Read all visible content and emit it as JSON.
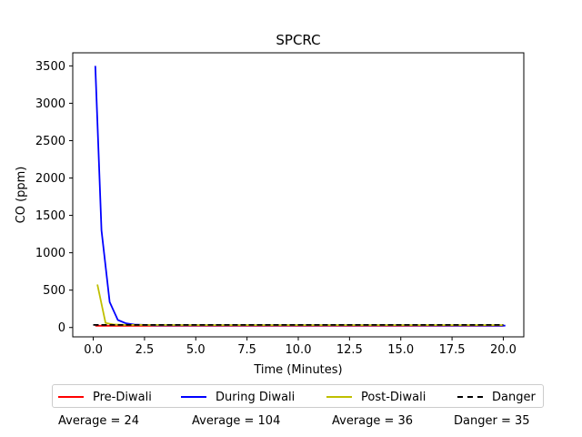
{
  "chart_data": {
    "type": "line",
    "title": "SPCRC",
    "xlabel": "Time (Minutes)",
    "ylabel": "CO (ppm)",
    "xlim": [
      -1.0,
      21.0
    ],
    "ylim": [
      -125,
      3675
    ],
    "xticks": [
      0.0,
      2.5,
      5.0,
      7.5,
      10.0,
      12.5,
      15.0,
      17.5,
      20.0
    ],
    "xtick_labels": [
      "0.0",
      "2.5",
      "5.0",
      "7.5",
      "10.0",
      "12.5",
      "15.0",
      "17.5",
      "20.0"
    ],
    "yticks": [
      0,
      500,
      1000,
      1500,
      2000,
      2500,
      3000,
      3500
    ],
    "ytick_labels": [
      "0",
      "500",
      "1000",
      "1500",
      "2000",
      "2500",
      "3000",
      "3500"
    ],
    "grid": false,
    "legend_position": "below",
    "series": [
      {
        "name": "Pre-Diwali",
        "color": "#ff0000",
        "style": "solid",
        "x": [
          0.1,
          20.0
        ],
        "y": [
          24,
          24
        ]
      },
      {
        "name": "During Diwali",
        "color": "#0000ff",
        "style": "solid",
        "x": [
          0.1,
          0.4,
          0.8,
          1.2,
          1.6,
          2.0,
          2.5,
          3.0,
          5.0,
          10.0,
          15.0,
          20.1
        ],
        "y": [
          3500,
          1300,
          340,
          100,
          55,
          40,
          35,
          30,
          30,
          30,
          30,
          25
        ]
      },
      {
        "name": "Post-Diwali",
        "color": "#bfbf00",
        "style": "solid",
        "x": [
          0.2,
          0.6,
          1.0,
          1.5,
          2.0,
          5.0,
          10.0,
          15.0,
          20.0
        ],
        "y": [
          575,
          60,
          40,
          36,
          34,
          32,
          32,
          32,
          32
        ]
      },
      {
        "name": "Danger",
        "color": "#000000",
        "style": "dashed",
        "x": [
          0.0,
          20.0
        ],
        "y": [
          35,
          35
        ]
      }
    ],
    "averages": [
      {
        "label": "Average = 24"
      },
      {
        "label": "Average = 104"
      },
      {
        "label": "Average = 36"
      },
      {
        "label": "Danger = 35"
      }
    ]
  }
}
